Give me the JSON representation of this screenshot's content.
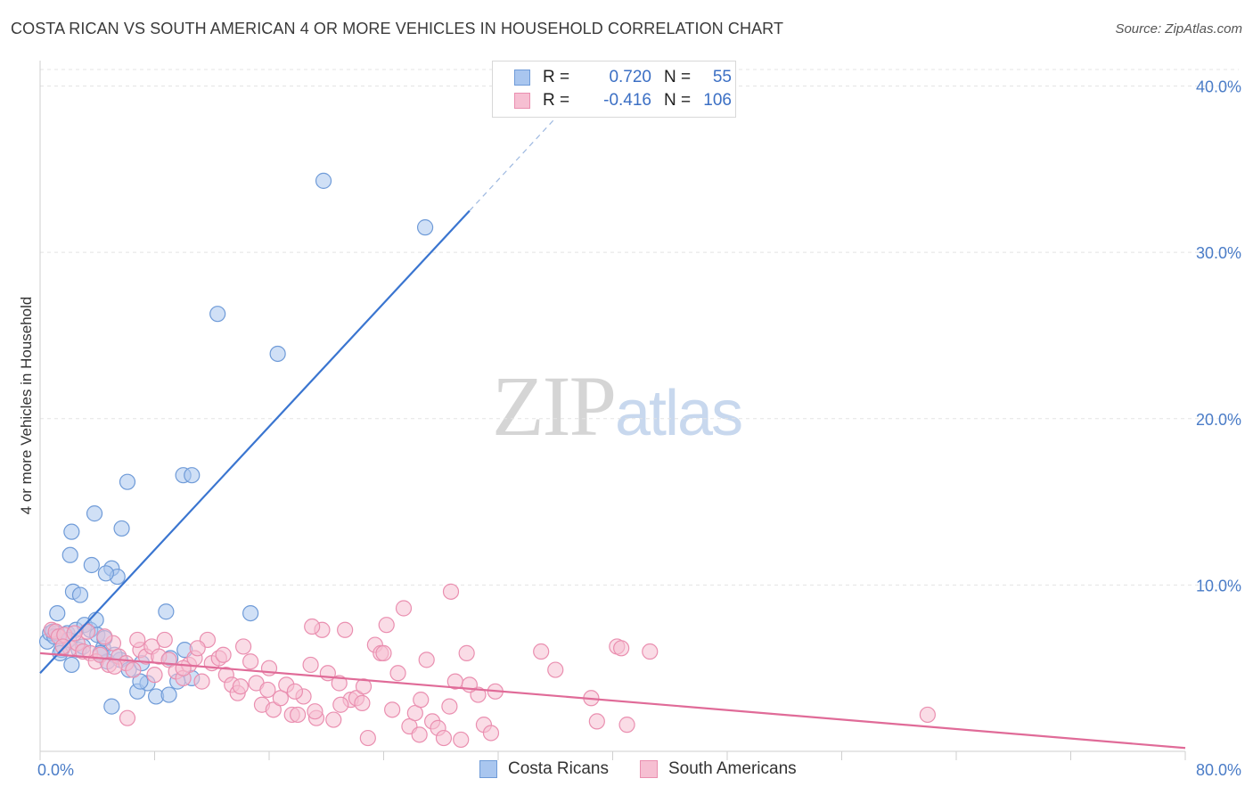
{
  "title": "COSTA RICAN VS SOUTH AMERICAN 4 OR MORE VEHICLES IN HOUSEHOLD CORRELATION CHART",
  "source": "Source: ZipAtlas.com",
  "watermark": {
    "zip": "ZIP",
    "atlas": "atlas"
  },
  "legend": {
    "rows": [
      {
        "r_label": "R =",
        "r_value": "0.720",
        "n_label": "N =",
        "n_value": "55",
        "color": "#a9c6ef",
        "border": "#6f9bd8"
      },
      {
        "r_label": "R =",
        "r_value": "-0.416",
        "n_label": "N =",
        "n_value": "106",
        "color": "#f6bfd2",
        "border": "#ea8fb0"
      }
    ]
  },
  "bottom_legend": [
    {
      "label": "Costa Ricans",
      "color": "#a9c6ef",
      "border": "#6f9bd8"
    },
    {
      "label": "South Americans",
      "color": "#f6bfd2",
      "border": "#ea8fb0"
    }
  ],
  "chart_data": {
    "type": "scatter",
    "title": "COSTA RICAN VS SOUTH AMERICAN 4 OR MORE VEHICLES IN HOUSEHOLD CORRELATION CHART",
    "xlabel": "",
    "ylabel": "4 or more Vehicles in Household",
    "xlim": [
      0,
      80
    ],
    "ylim": [
      0,
      40
    ],
    "x_tick_labels": [
      "0.0%",
      "80.0%"
    ],
    "y_ticks": [
      10,
      20,
      30,
      40
    ],
    "y_tick_labels": [
      "10.0%",
      "20.0%",
      "30.0%",
      "40.0%"
    ],
    "grid": true,
    "legend_position": "top-center",
    "series": [
      {
        "name": "Costa Ricans",
        "color": "#a9c6ef",
        "stroke": "#6f9bd8",
        "line_color": "#3a75d0",
        "trend": {
          "x0": 0,
          "y0": 4.7,
          "x1": 30,
          "y1": 32.5,
          "dash_to_x": 37,
          "dash_to_y": 39
        },
        "points": [
          [
            0.5,
            6.6
          ],
          [
            0.7,
            7.1
          ],
          [
            1.2,
            7.1
          ],
          [
            1.5,
            6.1
          ],
          [
            1.9,
            7.1
          ],
          [
            2.2,
            5.2
          ],
          [
            2.5,
            7.3
          ],
          [
            2.3,
            9.6
          ],
          [
            2.7,
            6.1
          ],
          [
            2.8,
            9.4
          ],
          [
            3.1,
            7.6
          ],
          [
            3.5,
            7.3
          ],
          [
            4.0,
            7.0
          ],
          [
            4.4,
            6.2
          ],
          [
            4.7,
            5.4
          ],
          [
            5.0,
            11.0
          ],
          [
            5.4,
            10.5
          ],
          [
            5.6,
            5.5
          ],
          [
            6.2,
            4.9
          ],
          [
            6.8,
            3.6
          ],
          [
            7.1,
            5.3
          ],
          [
            7.5,
            4.1
          ],
          [
            8.1,
            3.3
          ],
          [
            8.8,
            8.4
          ],
          [
            9.1,
            5.6
          ],
          [
            10.1,
            6.1
          ],
          [
            10.6,
            4.4
          ],
          [
            6.1,
            16.2
          ],
          [
            10.0,
            16.6
          ],
          [
            10.6,
            16.6
          ],
          [
            12.4,
            26.3
          ],
          [
            16.6,
            23.9
          ],
          [
            19.8,
            34.3
          ],
          [
            26.9,
            31.5
          ],
          [
            2.1,
            11.8
          ],
          [
            2.2,
            13.2
          ],
          [
            3.8,
            14.3
          ],
          [
            5.7,
            13.4
          ],
          [
            3.6,
            11.2
          ],
          [
            4.6,
            10.7
          ],
          [
            14.7,
            8.3
          ],
          [
            9.6,
            4.2
          ],
          [
            3.0,
            6.3
          ],
          [
            1.2,
            8.3
          ],
          [
            0.9,
            7.2
          ],
          [
            1.4,
            5.9
          ],
          [
            2.0,
            6.7
          ],
          [
            4.2,
            5.9
          ],
          [
            3.9,
            7.9
          ],
          [
            4.5,
            6.8
          ],
          [
            5.2,
            5.8
          ],
          [
            5.0,
            2.7
          ],
          [
            7.0,
            4.2
          ],
          [
            9.0,
            3.4
          ],
          [
            1.0,
            6.9
          ]
        ]
      },
      {
        "name": "South Americans",
        "color": "#f6bfd2",
        "stroke": "#ea8fb0",
        "line_color": "#e06b98",
        "trend": {
          "x0": 0,
          "y0": 5.9,
          "x1": 80,
          "y1": 0.2
        },
        "points": [
          [
            0.8,
            7.3
          ],
          [
            1.1,
            7.2
          ],
          [
            1.3,
            6.9
          ],
          [
            1.7,
            7.0
          ],
          [
            2.1,
            6.2
          ],
          [
            2.6,
            6.5
          ],
          [
            3.0,
            6.0
          ],
          [
            3.5,
            5.9
          ],
          [
            3.9,
            5.4
          ],
          [
            4.2,
            5.8
          ],
          [
            4.8,
            5.2
          ],
          [
            5.1,
            6.5
          ],
          [
            5.5,
            5.7
          ],
          [
            6.0,
            5.3
          ],
          [
            6.5,
            4.9
          ],
          [
            7.0,
            6.1
          ],
          [
            7.4,
            5.7
          ],
          [
            7.8,
            6.3
          ],
          [
            8.3,
            5.7
          ],
          [
            8.7,
            6.7
          ],
          [
            9.0,
            5.5
          ],
          [
            9.5,
            4.8
          ],
          [
            10.0,
            4.4
          ],
          [
            10.4,
            5.2
          ],
          [
            10.8,
            5.6
          ],
          [
            11.3,
            4.2
          ],
          [
            11.7,
            6.7
          ],
          [
            12.0,
            5.3
          ],
          [
            12.5,
            5.6
          ],
          [
            13.0,
            4.6
          ],
          [
            13.4,
            4.0
          ],
          [
            13.8,
            3.5
          ],
          [
            14.2,
            6.3
          ],
          [
            14.7,
            5.4
          ],
          [
            15.1,
            4.1
          ],
          [
            15.5,
            2.8
          ],
          [
            15.9,
            3.7
          ],
          [
            16.3,
            2.5
          ],
          [
            16.8,
            3.2
          ],
          [
            17.2,
            4.0
          ],
          [
            17.6,
            2.2
          ],
          [
            18.0,
            2.2
          ],
          [
            18.4,
            3.3
          ],
          [
            18.9,
            5.2
          ],
          [
            19.3,
            2.0
          ],
          [
            19.7,
            7.3
          ],
          [
            20.1,
            4.7
          ],
          [
            20.5,
            1.9
          ],
          [
            20.9,
            4.1
          ],
          [
            21.3,
            7.3
          ],
          [
            21.7,
            3.1
          ],
          [
            22.1,
            3.2
          ],
          [
            22.5,
            2.9
          ],
          [
            22.9,
            0.8
          ],
          [
            23.4,
            6.4
          ],
          [
            23.8,
            5.9
          ],
          [
            24.2,
            7.6
          ],
          [
            24.6,
            2.5
          ],
          [
            25.0,
            4.7
          ],
          [
            25.4,
            8.6
          ],
          [
            25.8,
            1.5
          ],
          [
            26.2,
            2.3
          ],
          [
            26.6,
            3.1
          ],
          [
            27.0,
            5.5
          ],
          [
            27.4,
            1.8
          ],
          [
            27.8,
            1.4
          ],
          [
            28.2,
            0.8
          ],
          [
            28.6,
            2.7
          ],
          [
            29.0,
            4.2
          ],
          [
            29.4,
            0.7
          ],
          [
            29.8,
            5.9
          ],
          [
            30.6,
            3.4
          ],
          [
            31.0,
            1.6
          ],
          [
            31.8,
            3.6
          ],
          [
            35.0,
            6.0
          ],
          [
            36.0,
            4.9
          ],
          [
            38.5,
            3.2
          ],
          [
            38.9,
            1.8
          ],
          [
            40.3,
            6.3
          ],
          [
            40.6,
            6.2
          ],
          [
            41.0,
            1.6
          ],
          [
            42.6,
            6.0
          ],
          [
            28.7,
            9.6
          ],
          [
            62.0,
            2.2
          ],
          [
            3.3,
            7.2
          ],
          [
            1.6,
            6.3
          ],
          [
            2.4,
            7.1
          ],
          [
            4.5,
            6.9
          ],
          [
            6.8,
            6.7
          ],
          [
            8.0,
            4.6
          ],
          [
            11.0,
            6.2
          ],
          [
            12.8,
            5.8
          ],
          [
            14.0,
            3.9
          ],
          [
            16.0,
            5.0
          ],
          [
            17.8,
            3.6
          ],
          [
            19.0,
            7.5
          ],
          [
            21.0,
            2.8
          ],
          [
            22.6,
            3.9
          ],
          [
            24.0,
            5.9
          ],
          [
            26.5,
            1.0
          ],
          [
            30.0,
            4.0
          ],
          [
            31.5,
            1.1
          ],
          [
            5.2,
            5.1
          ],
          [
            6.1,
            2.0
          ],
          [
            10.0,
            5.0
          ],
          [
            19.2,
            2.4
          ]
        ]
      }
    ]
  }
}
